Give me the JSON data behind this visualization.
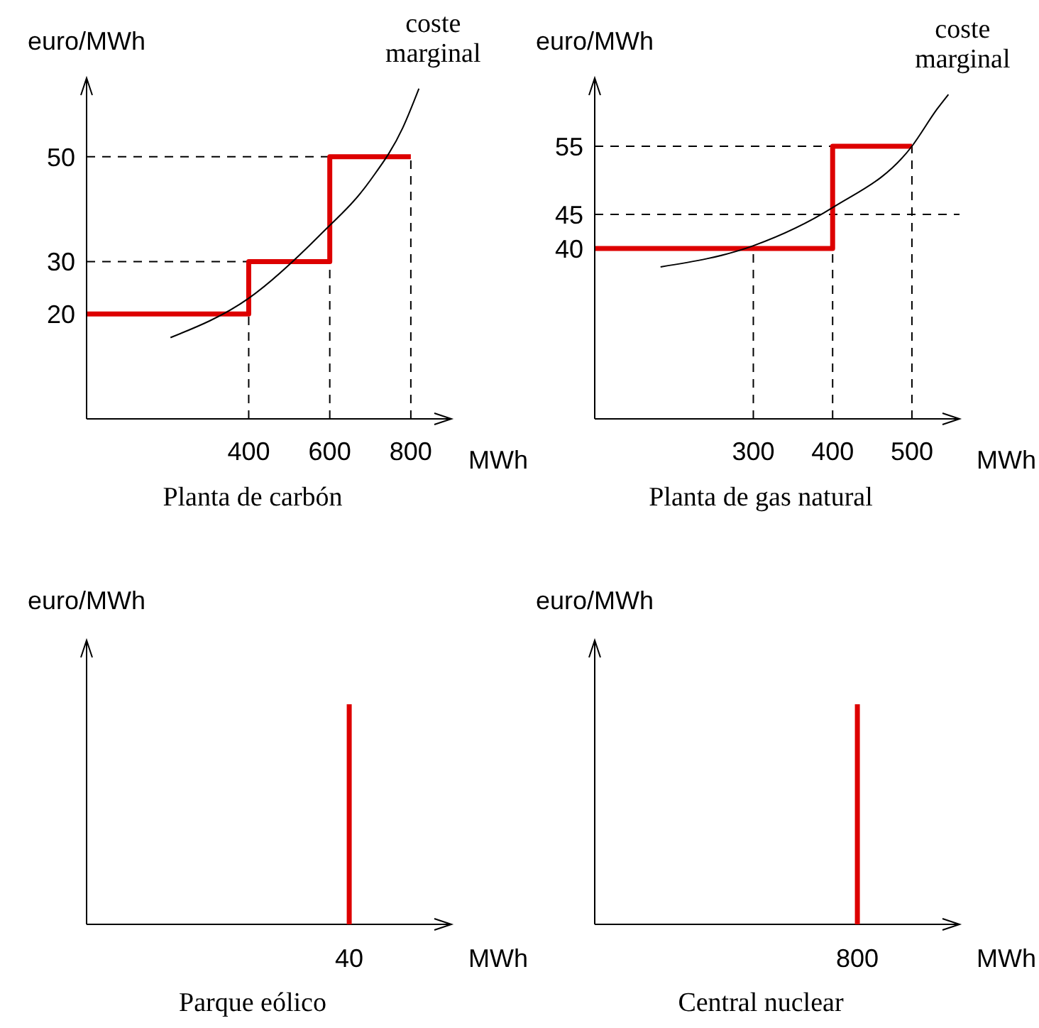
{
  "chart_data": [
    {
      "type": "step",
      "title": "Planta de carbón",
      "xlabel": "MWh",
      "ylabel": "euro/MWh",
      "xlim": [
        0,
        900
      ],
      "xticks": [
        400,
        600,
        800
      ],
      "ylim": [
        0,
        65
      ],
      "yticks": [
        20,
        30,
        50
      ],
      "grid": false,
      "legend": false,
      "marker": "none",
      "series": [
        {
          "color": "#dd0000",
          "x": [
            0,
            400,
            600,
            800
          ],
          "values": [
            20,
            30,
            50,
            50
          ]
        },
        {
          "type": "line",
          "name": "coste marginal",
          "color": "#000000",
          "x": [
            207,
            400,
            575,
            700,
            780,
            820
          ],
          "values": [
            15.5,
            23,
            35,
            45.5,
            55.5,
            63
          ]
        }
      ],
      "ref_lines": [
        {
          "axis": "y",
          "value": 30,
          "color": "#000000",
          "line_style": "dashed"
        },
        {
          "axis": "y",
          "value": 50,
          "color": "#000000",
          "line_style": "dashed"
        },
        {
          "axis": "x",
          "value": 400,
          "color": "#000000",
          "line_style": "dashed"
        },
        {
          "axis": "x",
          "value": 600,
          "color": "#000000",
          "line_style": "dashed"
        },
        {
          "axis": "x",
          "value": 800,
          "color": "#000000",
          "line_style": "dashed"
        }
      ]
    },
    {
      "type": "step",
      "title": "Planta de gas natural",
      "xlabel": "MWh",
      "ylabel": "euro/MWh",
      "xlim": [
        100,
        560
      ],
      "xticks": [
        300,
        400,
        500
      ],
      "ylim": [
        15,
        65
      ],
      "yticks": [
        40,
        45,
        55
      ],
      "grid": false,
      "legend": false,
      "marker": "none",
      "series": [
        {
          "color": "#dd0000",
          "x": [
            100,
            300,
            400,
            500
          ],
          "values": [
            40,
            40,
            55,
            55
          ]
        },
        {
          "type": "line",
          "name": "coste marginal",
          "color": "#000000",
          "x": [
            183,
            300,
            400,
            500,
            532,
            546
          ],
          "values": [
            37.3,
            40.4,
            46,
            55,
            60.5,
            62.6
          ]
        }
      ],
      "ref_lines": [
        {
          "axis": "y",
          "value": 45,
          "color": "#000000",
          "line_style": "dashed"
        },
        {
          "axis": "y",
          "value": 55,
          "color": "#000000",
          "line_style": "dashed"
        },
        {
          "axis": "x",
          "value": 300,
          "color": "#000000",
          "line_style": "dashed"
        },
        {
          "axis": "x",
          "value": 400,
          "color": "#000000",
          "line_style": "dashed"
        },
        {
          "axis": "x",
          "value": 500,
          "color": "#000000",
          "line_style": "dashed"
        }
      ]
    },
    {
      "type": "other",
      "title": "Parque eólico",
      "xlabel": "MWh",
      "ylabel": "euro/MWh",
      "annotations": [
        "40"
      ]
    },
    {
      "type": "other",
      "title": "Central nuclear",
      "xlabel": "MWh",
      "ylabel": "euro/MWh",
      "annotations": [
        "800"
      ]
    }
  ]
}
